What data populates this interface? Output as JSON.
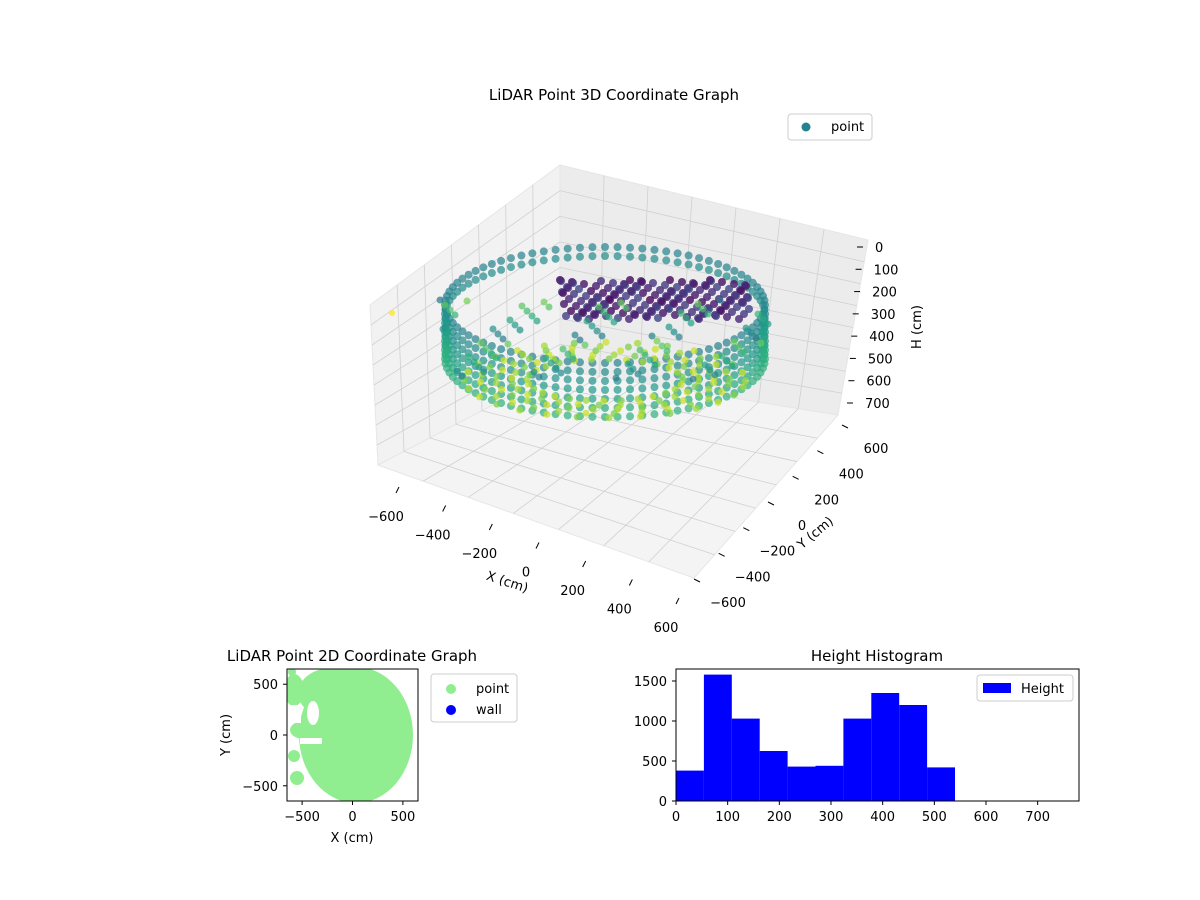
{
  "chart_data": [
    {
      "type": "scatter",
      "title": "LiDAR Point 3D Coordinate Graph",
      "xlabel": "X (cm)",
      "ylabel": "Y (cm)",
      "zlabel": "H (cm)",
      "xlim": [
        -650,
        650
      ],
      "ylim": [
        -650,
        650
      ],
      "zlim": [
        750,
        0
      ],
      "xticks": [
        "−600",
        "−400",
        "−200",
        "0",
        "200",
        "400",
        "600"
      ],
      "yticks": [
        "600",
        "400",
        "200",
        "0",
        "−200",
        "−400",
        "−600"
      ],
      "zticks": [
        "0",
        "100",
        "200",
        "300",
        "400",
        "500",
        "600",
        "700"
      ],
      "grid": true,
      "legend": {
        "placement": "top-right",
        "entries": [
          {
            "name": "point",
            "color": "#26828e"
          }
        ]
      },
      "colormap": "viridis",
      "series": [
        {
          "name": "point",
          "note_colors": "color by height"
        }
      ]
    },
    {
      "type": "scatter",
      "title": "LiDAR Point 2D Coordinate Graph",
      "xlabel": "X (cm)",
      "ylabel": "Y (cm)",
      "xlim": [
        -650,
        650
      ],
      "ylim": [
        -650,
        650
      ],
      "xticks": [
        "−500",
        "0",
        "500"
      ],
      "yticks": [
        "500",
        "0",
        "−500"
      ],
      "legend": {
        "placement": "outside-right",
        "entries": [
          {
            "name": "point",
            "color": "#90ee90"
          },
          {
            "name": "wall",
            "color": "#0000ff"
          }
        ]
      }
    },
    {
      "type": "bar",
      "title": "Height Histogram",
      "xlabel": "",
      "ylabel": "",
      "bin_edges": [
        0,
        54,
        108,
        162,
        216,
        270,
        324,
        378,
        432,
        486,
        540
      ],
      "values": [
        380,
        1580,
        1030,
        625,
        430,
        440,
        1030,
        1350,
        1200,
        420
      ],
      "xlim": [
        0,
        780
      ],
      "ylim": [
        0,
        1650
      ],
      "xticks": [
        "0",
        "100",
        "200",
        "300",
        "400",
        "500",
        "600",
        "700"
      ],
      "yticks": [
        "0",
        "500",
        "1000",
        "1500"
      ],
      "color": "#0000ff",
      "legend": {
        "placement": "top-right",
        "entries": [
          {
            "name": "Height",
            "color": "#0000ff"
          }
        ]
      }
    }
  ]
}
